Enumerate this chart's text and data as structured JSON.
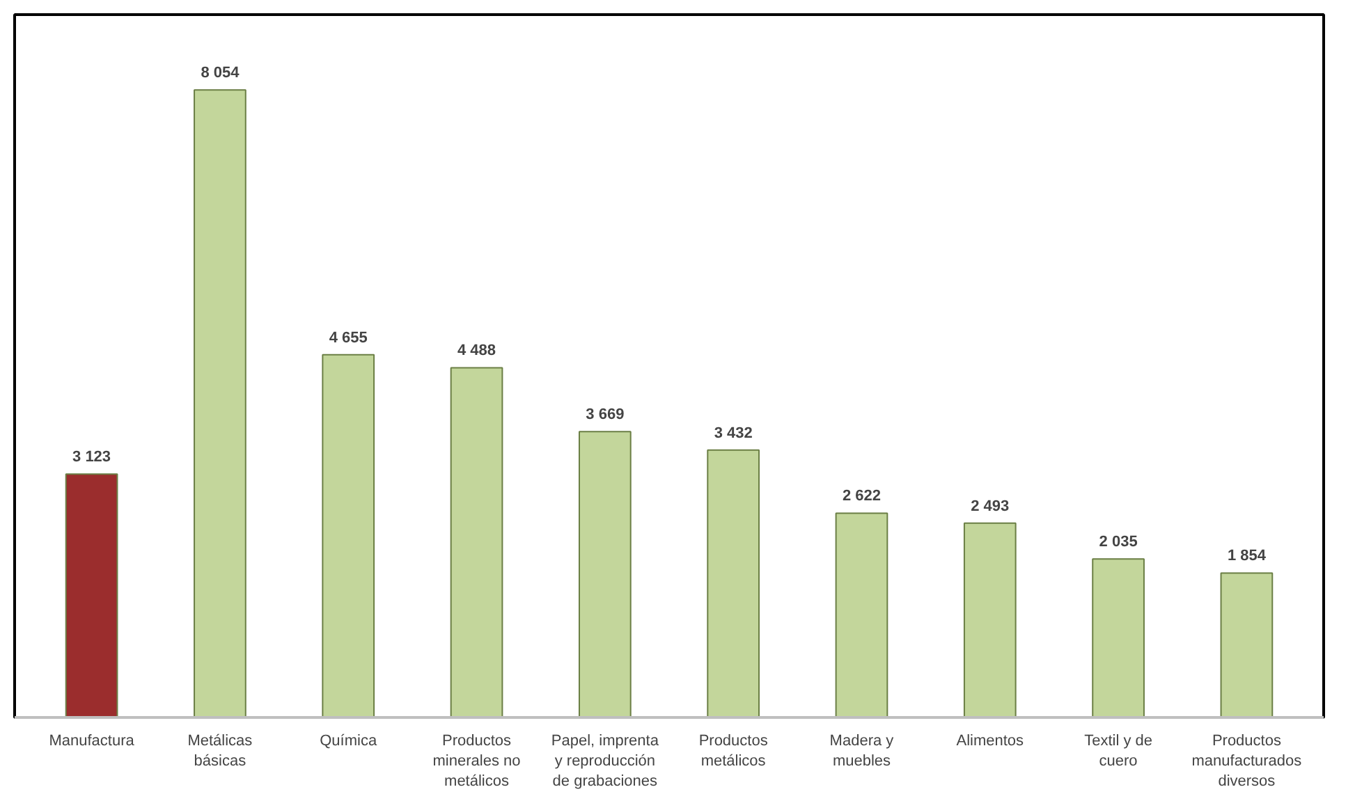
{
  "chart_data": {
    "type": "bar",
    "categories": [
      "Manufactura",
      "Metálicas\nbásicas",
      "Química",
      "Productos\nminerales no\nmetálicos",
      "Papel, imprenta\ny reproducción\nde grabaciones",
      "Productos\nmetálicos",
      "Madera y\nmuebles",
      "Alimentos",
      "Textil y de\ncuero",
      "Productos\nmanufacturados\ndiversos"
    ],
    "values": [
      3123,
      8054,
      4655,
      4488,
      3669,
      3432,
      2622,
      2493,
      2035,
      1854
    ],
    "colors": [
      "#9b2d2d",
      "#c3d69b",
      "#c3d69b",
      "#c3d69b",
      "#c3d69b",
      "#c3d69b",
      "#c3d69b",
      "#c3d69b",
      "#c3d69b",
      "#c3d69b"
    ],
    "value_labels": [
      "3 123",
      "8 054",
      "4 655",
      "4 488",
      "3 669",
      "3 432",
      "2 622",
      "2 493",
      "2 035",
      "1 854"
    ],
    "tick_labels": "x",
    "grid": false
  }
}
